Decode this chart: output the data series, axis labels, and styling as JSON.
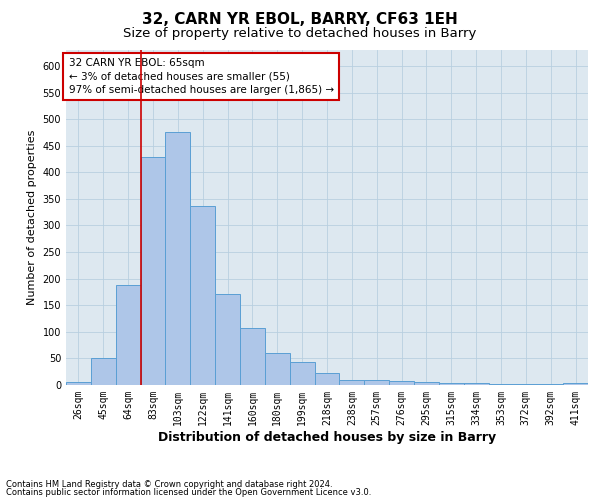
{
  "title": "32, CARN YR EBOL, BARRY, CF63 1EH",
  "subtitle": "Size of property relative to detached houses in Barry",
  "xlabel": "Distribution of detached houses by size in Barry",
  "ylabel": "Number of detached properties",
  "categories": [
    "26sqm",
    "45sqm",
    "64sqm",
    "83sqm",
    "103sqm",
    "122sqm",
    "141sqm",
    "160sqm",
    "180sqm",
    "199sqm",
    "218sqm",
    "238sqm",
    "257sqm",
    "276sqm",
    "295sqm",
    "315sqm",
    "334sqm",
    "353sqm",
    "372sqm",
    "392sqm",
    "411sqm"
  ],
  "values": [
    5,
    50,
    188,
    428,
    475,
    337,
    172,
    107,
    60,
    43,
    22,
    10,
    10,
    8,
    5,
    4,
    3,
    2,
    2,
    1,
    3
  ],
  "bar_color": "#aec6e8",
  "bar_edgecolor": "#5a9fd4",
  "bar_linewidth": 0.7,
  "vline_x": 2.5,
  "vline_color": "#cc0000",
  "vline_linewidth": 1.2,
  "annotation_title": "32 CARN YR EBOL: 65sqm",
  "annotation_line1": "← 3% of detached houses are smaller (55)",
  "annotation_line2": "97% of semi-detached houses are larger (1,865) →",
  "annotation_box_color": "#cc0000",
  "background_color": "#ffffff",
  "axes_facecolor": "#dde8f0",
  "grid_color": "#b8cfe0",
  "ylim": [
    0,
    630
  ],
  "yticks": [
    0,
    50,
    100,
    150,
    200,
    250,
    300,
    350,
    400,
    450,
    500,
    550,
    600
  ],
  "footnote1": "Contains HM Land Registry data © Crown copyright and database right 2024.",
  "footnote2": "Contains public sector information licensed under the Open Government Licence v3.0.",
  "title_fontsize": 11,
  "subtitle_fontsize": 9.5,
  "xlabel_fontsize": 9,
  "ylabel_fontsize": 8,
  "tick_fontsize": 7,
  "annotation_fontsize": 7.5,
  "footnote_fontsize": 6
}
